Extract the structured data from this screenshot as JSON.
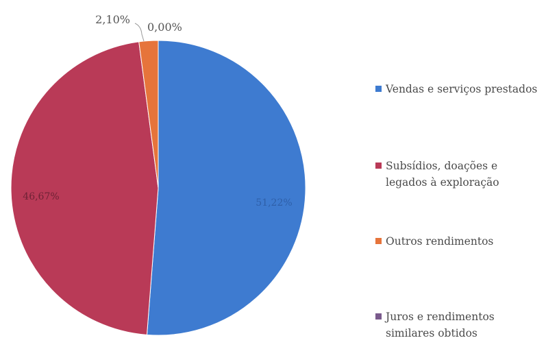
{
  "chart_data": {
    "type": "pie",
    "title": "",
    "categories": [
      "Vendas e serviços prestados",
      "Subsídios, doações e legados à exploração",
      "Outros rendimentos",
      "Juros e rendimentos similares obtidos"
    ],
    "values": [
      51.22,
      46.67,
      2.1,
      0.0
    ],
    "data_labels": [
      "51,22%",
      "46,67%",
      "2,10%",
      "0,00%"
    ],
    "colors": [
      "#3e7bd0",
      "#b93a57",
      "#e6743b",
      "#7a5a8c"
    ],
    "start_angle_deg": 0,
    "direction": "clockwise",
    "legend_position": "right"
  },
  "legend": {
    "items": [
      {
        "label": "Vendas e serviços prestados",
        "color": "#3e7bd0"
      },
      {
        "label": "Subsídios, doações e legados à exploração",
        "color": "#b93a57"
      },
      {
        "label": "Outros rendimentos",
        "color": "#e6743b"
      },
      {
        "label": "Juros e rendimentos similares obtidos",
        "color": "#7a5a8c"
      }
    ]
  }
}
